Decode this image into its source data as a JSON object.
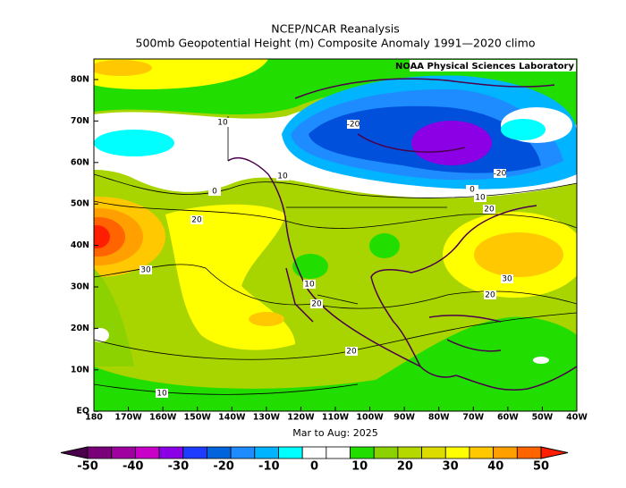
{
  "header": {
    "title": "NCEP/NCAR Reanalysis",
    "subtitle": "500mb Geopotential Height (m) Composite Anomaly 1991—2020 climo"
  },
  "credit": "NOAA Physical Sciences Laboratory",
  "map": {
    "lat_labels": [
      "80N",
      "70N",
      "60N",
      "50N",
      "40N",
      "30N",
      "20N",
      "10N",
      "EQ"
    ],
    "lon_labels": [
      "180",
      "170W",
      "160W",
      "150W",
      "140W",
      "130W",
      "120W",
      "110W",
      "100W",
      "90W",
      "80W",
      "70W",
      "60W",
      "50W",
      "40W"
    ],
    "period": "Mar to Aug: 2025",
    "contour_labels": [
      "10",
      "-20",
      "0",
      "10",
      "20",
      "30",
      "10",
      "20",
      "20",
      "10",
      "0",
      "10",
      "20",
      "30",
      "20",
      "-20"
    ]
  },
  "colorbar": {
    "labels": [
      -50,
      -40,
      -30,
      -20,
      -10,
      0,
      10,
      20,
      30,
      40,
      50
    ],
    "colors": [
      "#4b004b",
      "#7a007a",
      "#a000a0",
      "#c800c8",
      "#8c00e6",
      "#1e3cff",
      "#0064dc",
      "#1e8cff",
      "#00b4ff",
      "#00ffff",
      "#ffffff",
      "#ffffff",
      "#22dd00",
      "#8cd200",
      "#b4d800",
      "#dcdc00",
      "#ffff00",
      "#ffc800",
      "#ffa000",
      "#ff6400",
      "#ff1e00"
    ]
  }
}
